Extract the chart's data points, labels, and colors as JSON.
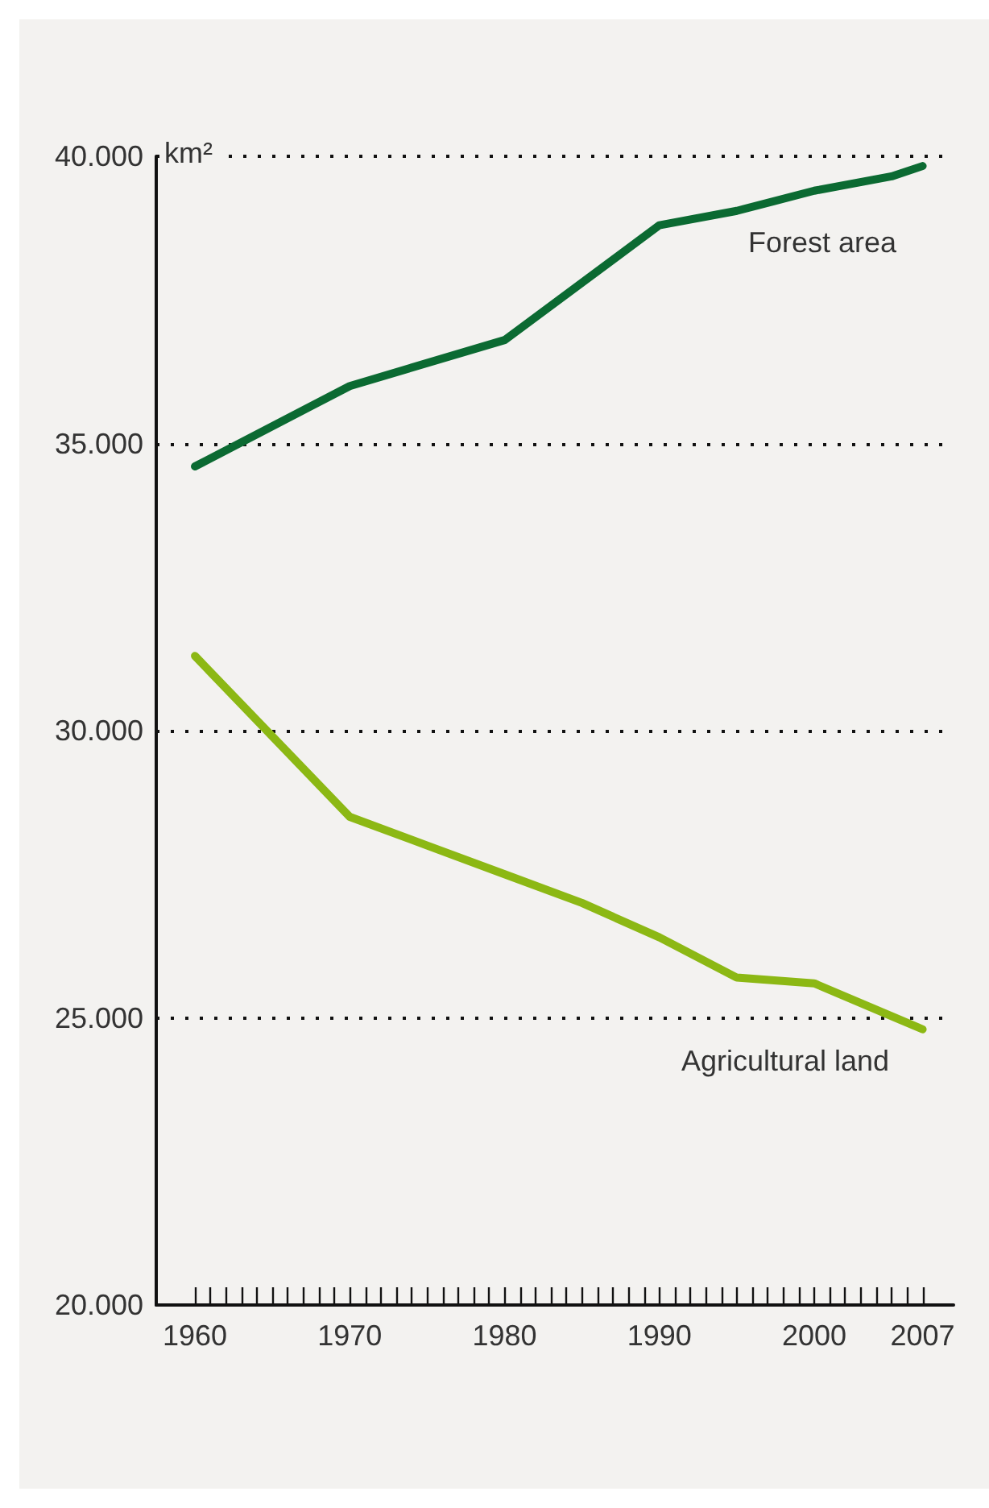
{
  "chart_data": {
    "type": "line",
    "ylabel": "km²",
    "series": [
      {
        "name": "Forest area",
        "color": "#0b6a32",
        "x": [
          1960,
          1970,
          1980,
          1990,
          1995,
          2000,
          2005,
          2007
        ],
        "values": [
          34600,
          36000,
          36800,
          38800,
          39050,
          39400,
          39650,
          39830
        ]
      },
      {
        "name": "Agricultural land",
        "color": "#8cb814",
        "x": [
          1960,
          1970,
          1975,
          1980,
          1985,
          1990,
          1995,
          2000,
          2007
        ],
        "values": [
          31300,
          28500,
          28000,
          27500,
          27000,
          26400,
          25700,
          25600,
          24800
        ]
      }
    ],
    "xlim": [
      1957.5,
      2009
    ],
    "xticks": [
      1960,
      {
        "value": 1961,
        "label": null
      },
      {
        "value": 1962,
        "label": null
      },
      {
        "value": 1963,
        "label": null
      },
      {
        "value": 1964,
        "label": null
      },
      {
        "value": 1965,
        "label": null
      },
      {
        "value": 1966,
        "label": null
      },
      {
        "value": 1967,
        "label": null
      },
      {
        "value": 1968,
        "label": null
      },
      {
        "value": 1969,
        "label": null
      },
      1970,
      {
        "value": 1971,
        "label": null
      },
      {
        "value": 1972,
        "label": null
      },
      {
        "value": 1973,
        "label": null
      },
      {
        "value": 1974,
        "label": null
      },
      {
        "value": 1975,
        "label": null
      },
      {
        "value": 1976,
        "label": null
      },
      {
        "value": 1977,
        "label": null
      },
      {
        "value": 1978,
        "label": null
      },
      {
        "value": 1979,
        "label": null
      },
      1980,
      {
        "value": 1981,
        "label": null
      },
      {
        "value": 1982,
        "label": null
      },
      {
        "value": 1983,
        "label": null
      },
      {
        "value": 1984,
        "label": null
      },
      {
        "value": 1985,
        "label": null
      },
      {
        "value": 1986,
        "label": null
      },
      {
        "value": 1987,
        "label": null
      },
      {
        "value": 1988,
        "label": null
      },
      {
        "value": 1989,
        "label": null
      },
      1990,
      {
        "value": 1991,
        "label": null
      },
      {
        "value": 1992,
        "label": null
      },
      {
        "value": 1993,
        "label": null
      },
      {
        "value": 1994,
        "label": null
      },
      {
        "value": 1995,
        "label": null
      },
      {
        "value": 1996,
        "label": null
      },
      {
        "value": 1997,
        "label": null
      },
      {
        "value": 1998,
        "label": null
      },
      {
        "value": 1999,
        "label": null
      },
      2000,
      {
        "value": 2001,
        "label": null
      },
      {
        "value": 2002,
        "label": null
      },
      {
        "value": 2003,
        "label": null
      },
      {
        "value": 2004,
        "label": null
      },
      {
        "value": 2005,
        "label": null
      },
      {
        "value": 2006,
        "label": null
      },
      2007
    ],
    "ylim": [
      20000,
      40000
    ],
    "yticks": [
      {
        "value": 20000,
        "label": "20.000"
      },
      {
        "value": 25000,
        "label": "25.000"
      },
      {
        "value": 30000,
        "label": "30.000"
      },
      {
        "value": 35000,
        "label": "35.000"
      },
      {
        "value": 40000,
        "label": "40.000"
      }
    ],
    "grid": "y",
    "legend": false,
    "marker": "none",
    "line_style": "solid"
  }
}
